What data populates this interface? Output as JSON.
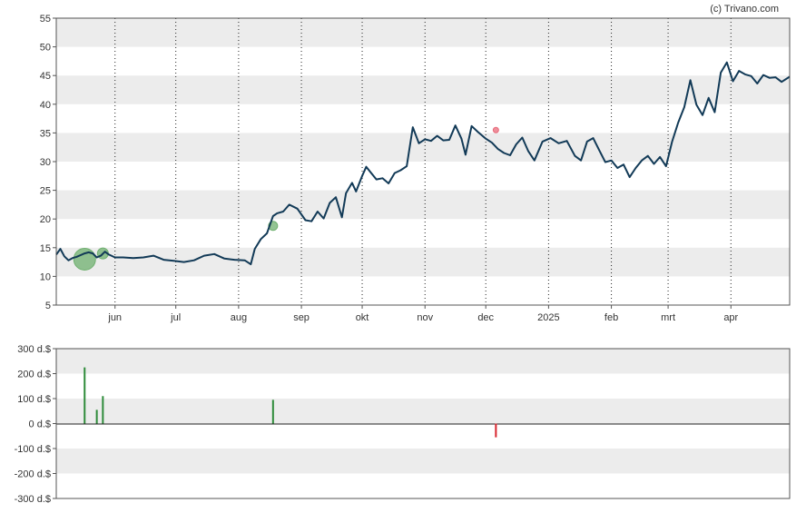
{
  "watermark": "(c) Trivano.com",
  "colors": {
    "price_line": "#123a57",
    "band": "#ececec",
    "buy": "#2e8b3a",
    "sell": "#d8262f",
    "buy_bubble": "#6fb06f",
    "sell_bubble": "#e86a7a"
  },
  "chart_data": [
    {
      "type": "line",
      "name": "price",
      "ylim": [
        5,
        55
      ],
      "yticks": [
        5,
        10,
        15,
        20,
        25,
        30,
        35,
        40,
        45,
        50,
        55
      ],
      "xlim": [
        "2024-05-03",
        "2025-04-30"
      ],
      "month_ticks": [
        {
          "date": "2024-06-01",
          "label": "jun"
        },
        {
          "date": "2024-07-01",
          "label": "jul"
        },
        {
          "date": "2024-08-01",
          "label": "aug"
        },
        {
          "date": "2024-09-01",
          "label": "sep"
        },
        {
          "date": "2024-10-01",
          "label": "okt"
        },
        {
          "date": "2024-11-01",
          "label": "nov"
        },
        {
          "date": "2024-12-01",
          "label": "dec"
        },
        {
          "date": "2025-01-01",
          "label": "2025"
        },
        {
          "date": "2025-02-01",
          "label": "feb"
        },
        {
          "date": "2025-03-01",
          "label": "mrt"
        },
        {
          "date": "2025-04-01",
          "label": "apr"
        }
      ],
      "series": [
        {
          "x": [
            "2024-05-03",
            "2024-05-05",
            "2024-05-07",
            "2024-05-09",
            "2024-05-11",
            "2024-05-13",
            "2024-05-15",
            "2024-05-17",
            "2024-05-19",
            "2024-05-21",
            "2024-05-23",
            "2024-05-25",
            "2024-05-27",
            "2024-05-29",
            "2024-06-01",
            "2024-06-05",
            "2024-06-10",
            "2024-06-15",
            "2024-06-20",
            "2024-06-25",
            "2024-06-30",
            "2024-07-05",
            "2024-07-10",
            "2024-07-15",
            "2024-07-20",
            "2024-07-25",
            "2024-07-30",
            "2024-08-04",
            "2024-08-07",
            "2024-08-09",
            "2024-08-12",
            "2024-08-15",
            "2024-08-18",
            "2024-08-20",
            "2024-08-23",
            "2024-08-26",
            "2024-08-30",
            "2024-09-03",
            "2024-09-06",
            "2024-09-09",
            "2024-09-12",
            "2024-09-15",
            "2024-09-18",
            "2024-09-21",
            "2024-09-23",
            "2024-09-26",
            "2024-09-28",
            "2024-10-01",
            "2024-10-03",
            "2024-10-05",
            "2024-10-08",
            "2024-10-11",
            "2024-10-14",
            "2024-10-17",
            "2024-10-20",
            "2024-10-23",
            "2024-10-26",
            "2024-10-29",
            "2024-11-01",
            "2024-11-04",
            "2024-11-07",
            "2024-11-10",
            "2024-11-13",
            "2024-11-16",
            "2024-11-19",
            "2024-11-21",
            "2024-11-24",
            "2024-11-27",
            "2024-12-01",
            "2024-12-04",
            "2024-12-07",
            "2024-12-10",
            "2024-12-13",
            "2024-12-16",
            "2024-12-19",
            "2024-12-22",
            "2024-12-25",
            "2024-12-29",
            "2025-01-02",
            "2025-01-06",
            "2025-01-10",
            "2025-01-14",
            "2025-01-17",
            "2025-01-20",
            "2025-01-23",
            "2025-01-26",
            "2025-01-29",
            "2025-02-01",
            "2025-02-04",
            "2025-02-07",
            "2025-02-10",
            "2025-02-13",
            "2025-02-16",
            "2025-02-19",
            "2025-02-22",
            "2025-02-25",
            "2025-02-28",
            "2025-03-03",
            "2025-03-06",
            "2025-03-09",
            "2025-03-12",
            "2025-03-15",
            "2025-03-18",
            "2025-03-21",
            "2025-03-24",
            "2025-03-27",
            "2025-03-30",
            "2025-04-02",
            "2025-04-05",
            "2025-04-08",
            "2025-04-11",
            "2025-04-14",
            "2025-04-17",
            "2025-04-20",
            "2025-04-23",
            "2025-04-26",
            "2025-04-30"
          ],
          "values": [
            13.8,
            14.8,
            13.5,
            12.8,
            13.2,
            13.4,
            13.7,
            14.0,
            14.2,
            14.0,
            13.3,
            13.6,
            14.3,
            13.8,
            13.3,
            13.3,
            13.2,
            13.3,
            13.6,
            12.9,
            12.7,
            12.5,
            12.8,
            13.6,
            13.9,
            13.1,
            12.9,
            12.8,
            12.1,
            14.8,
            16.5,
            17.5,
            20.5,
            21.0,
            21.3,
            22.5,
            21.8,
            19.8,
            19.6,
            21.3,
            20.1,
            22.8,
            23.8,
            20.3,
            24.5,
            26.3,
            24.8,
            27.5,
            29.1,
            28.2,
            26.9,
            27.1,
            26.2,
            28.0,
            28.5,
            29.2,
            36.0,
            33.2,
            33.9,
            33.6,
            34.5,
            33.7,
            33.8,
            36.3,
            34.0,
            31.2,
            36.2,
            35.2,
            34.0,
            33.3,
            32.2,
            31.5,
            31.1,
            33.0,
            34.2,
            31.8,
            30.2,
            33.5,
            34.1,
            33.2,
            33.6,
            31.0,
            30.2,
            33.5,
            34.1,
            32.0,
            29.9,
            30.2,
            28.9,
            29.5,
            27.3,
            28.9,
            30.2,
            31.0,
            29.6,
            30.8,
            29.2,
            33.5,
            36.8,
            39.5,
            44.2,
            39.9,
            38.1,
            41.1,
            38.6,
            45.5,
            47.3,
            44.0,
            45.8,
            45.2,
            44.9,
            43.6,
            45.1,
            44.6,
            44.7,
            43.9,
            44.8
          ]
        }
      ],
      "markers": [
        {
          "date": "2024-05-17",
          "value": 13.0,
          "kind": "buy",
          "size": 12
        },
        {
          "date": "2024-05-26",
          "value": 14.0,
          "kind": "buy",
          "size": 6
        },
        {
          "date": "2024-08-18",
          "value": 18.8,
          "kind": "buy",
          "size": 5
        },
        {
          "date": "2024-12-06",
          "value": 35.5,
          "kind": "sell",
          "size": 3
        }
      ]
    },
    {
      "type": "bar",
      "name": "insider-volume",
      "ylim": [
        -300,
        300
      ],
      "yticks": [
        300,
        200,
        100,
        0,
        -100,
        -200,
        -300
      ],
      "ytick_labels": [
        "300 d.$",
        "200 d.$",
        "100 d.$",
        "0 d.$",
        "-100 d.$",
        "-200 d.$",
        "-300 d.$"
      ],
      "bars": [
        {
          "date": "2024-05-17",
          "value": 225,
          "kind": "buy"
        },
        {
          "date": "2024-05-23",
          "value": 55,
          "kind": "buy"
        },
        {
          "date": "2024-05-26",
          "value": 110,
          "kind": "buy"
        },
        {
          "date": "2024-08-18",
          "value": 95,
          "kind": "buy"
        },
        {
          "date": "2024-12-06",
          "value": -55,
          "kind": "sell"
        }
      ]
    }
  ]
}
